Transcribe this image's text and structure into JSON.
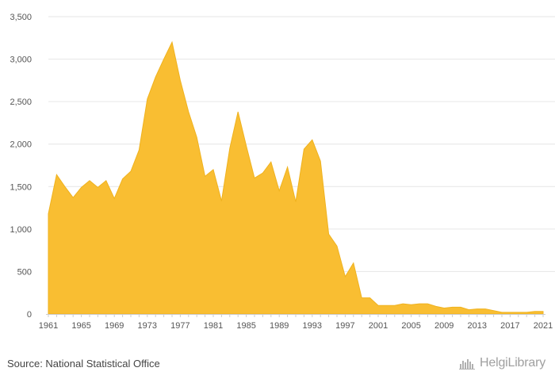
{
  "chart_data": {
    "type": "area",
    "x": [
      1961,
      1962,
      1963,
      1964,
      1965,
      1966,
      1967,
      1968,
      1969,
      1970,
      1971,
      1972,
      1973,
      1974,
      1975,
      1976,
      1977,
      1978,
      1979,
      1980,
      1981,
      1982,
      1983,
      1984,
      1985,
      1986,
      1987,
      1988,
      1989,
      1990,
      1991,
      1992,
      1993,
      1994,
      1995,
      1996,
      1997,
      1998,
      1999,
      2000,
      2001,
      2002,
      2003,
      2004,
      2005,
      2006,
      2007,
      2008,
      2009,
      2010,
      2011,
      2012,
      2013,
      2014,
      2015,
      2016,
      2017,
      2018,
      2019,
      2020,
      2021
    ],
    "values": [
      1180,
      1640,
      1500,
      1370,
      1490,
      1570,
      1490,
      1570,
      1360,
      1590,
      1680,
      1930,
      2530,
      2790,
      3000,
      3200,
      2750,
      2380,
      2080,
      1620,
      1700,
      1330,
      1950,
      2380,
      1980,
      1600,
      1660,
      1790,
      1450,
      1730,
      1320,
      1940,
      2050,
      1800,
      940,
      800,
      440,
      600,
      190,
      190,
      100,
      100,
      100,
      120,
      110,
      120,
      120,
      90,
      70,
      80,
      80,
      50,
      60,
      60,
      40,
      20,
      20,
      20,
      20,
      30,
      30
    ],
    "xlim": [
      1961,
      2021
    ],
    "ylim": [
      0,
      3500
    ],
    "x_ticks": [
      "1961",
      "1965",
      "1969",
      "1973",
      "1977",
      "1981",
      "1985",
      "1989",
      "1993",
      "1997",
      "2001",
      "2005",
      "2009",
      "2013",
      "2017",
      "2021"
    ],
    "y_ticks": [
      "0",
      "500",
      "1,000",
      "1,500",
      "2,000",
      "2,500",
      "3,000",
      "3,500"
    ],
    "grid": "horizontal",
    "colors": {
      "fill": "#F9BE32",
      "stroke": "#EFB21F",
      "grid": "#e6e6e6",
      "axis": "#cccccc"
    }
  },
  "footer": {
    "source": "Source: National Statistical Office",
    "logo_text": "HelgiLibrary"
  }
}
